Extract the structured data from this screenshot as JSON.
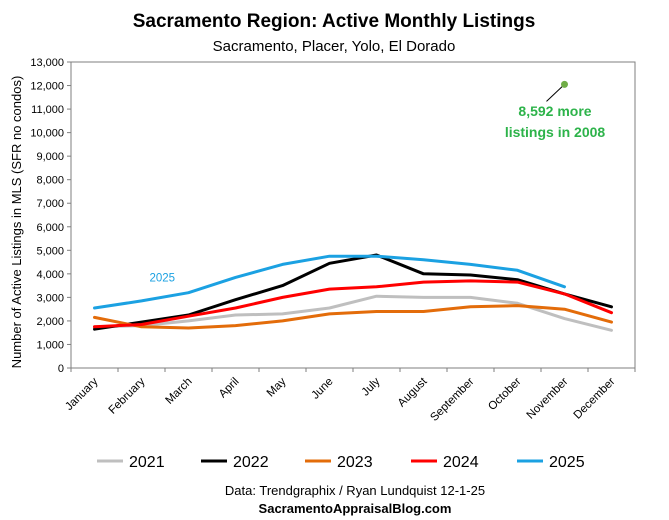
{
  "chart_data": {
    "type": "line",
    "title": "Sacramento Region: Active Monthly Listings",
    "subtitle": "Sacramento, Placer, Yolo, El Dorado",
    "ylabel": "Number of Active Listings in MLS (SFR no condos)",
    "xlabel": "",
    "ylim": [
      0,
      13000
    ],
    "ytick_step": 1000,
    "ytick_labels": [
      "0",
      "1,000",
      "2,000",
      "3,000",
      "4,000",
      "5,000",
      "6,000",
      "7,000",
      "8,000",
      "9,000",
      "10,000",
      "11,000",
      "12,000",
      "13,000"
    ],
    "categories": [
      "January",
      "February",
      "March",
      "April",
      "May",
      "June",
      "July",
      "August",
      "September",
      "October",
      "November",
      "December"
    ],
    "series": [
      {
        "name": "2021",
        "color": "#bfbfbf",
        "values": [
          1750,
          1800,
          2000,
          2250,
          2300,
          2550,
          3050,
          3000,
          3000,
          2750,
          2100,
          1600
        ]
      },
      {
        "name": "2022",
        "color": "#000000",
        "values": [
          1650,
          1950,
          2250,
          2900,
          3500,
          4450,
          4800,
          4000,
          3950,
          3750,
          3150,
          2600
        ]
      },
      {
        "name": "2023",
        "color": "#e36c0a",
        "values": [
          2150,
          1750,
          1700,
          1800,
          2000,
          2300,
          2400,
          2400,
          2600,
          2650,
          2500,
          1950
        ]
      },
      {
        "name": "2024",
        "color": "#ff0000",
        "values": [
          1750,
          1850,
          2200,
          2550,
          3000,
          3350,
          3450,
          3650,
          3700,
          3650,
          3150,
          2350
        ]
      },
      {
        "name": "2025",
        "color": "#1ba1e2",
        "values": [
          2550,
          2850,
          3200,
          3850,
          4400,
          4750,
          4750,
          4600,
          4400,
          4150,
          3450,
          null
        ]
      }
    ],
    "series_label": {
      "text": "2025",
      "color": "#1ba1e2"
    },
    "annotation": {
      "line1": "8,592 more",
      "line2": "listings in 2008",
      "color": "#2db34a",
      "point": {
        "month": "November",
        "value": 12050
      }
    },
    "grid": false,
    "legend": "bottom"
  },
  "footer": {
    "source": "Data: Trendgraphix / Ryan Lundquist 12-1-25",
    "site": "SacramentoAppraisalBlog.com"
  }
}
